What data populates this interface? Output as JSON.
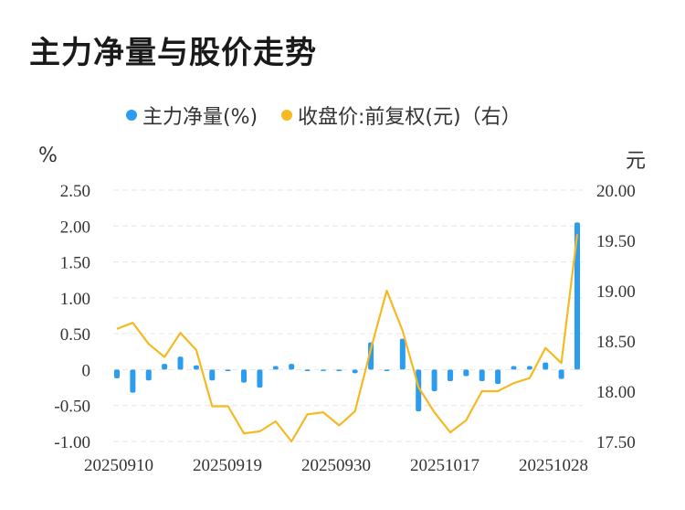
{
  "title": "主力净量与股价走势",
  "legend": {
    "main_label": "主力净量(%)",
    "price_label": "收盘价:前复权(元)（右）"
  },
  "units": {
    "left": "%",
    "right": "元"
  },
  "colors": {
    "bar": "#2b9cee",
    "line": "#f5b922",
    "grid": "#e6e6e6",
    "text": "#333333"
  },
  "chart_data": {
    "type": "bar+line",
    "x_tick_labels": [
      "20250910",
      "20250919",
      "20250930",
      "20251017",
      "20251028"
    ],
    "left_axis": {
      "ticks": [
        "2.50",
        "2.00",
        "1.50",
        "1.00",
        "0.50",
        "0",
        "-0.50",
        "-1.00"
      ],
      "ylim": [
        -1.0,
        2.5
      ]
    },
    "right_axis": {
      "ticks": [
        "20.00",
        "19.50",
        "19.00",
        "18.50",
        "18.00",
        "17.50"
      ],
      "ylim": [
        17.5,
        20.0
      ]
    },
    "series": [
      {
        "name": "主力净量(%)",
        "type": "bar",
        "axis": "left",
        "values": [
          -0.12,
          -0.32,
          -0.15,
          0.08,
          0.18,
          0.06,
          -0.15,
          -0.02,
          -0.18,
          -0.25,
          0.05,
          0.08,
          -0.02,
          -0.01,
          -0.02,
          -0.05,
          0.38,
          -0.02,
          0.43,
          -0.58,
          -0.3,
          -0.16,
          -0.09,
          -0.16,
          -0.2,
          0.05,
          0.05,
          0.1,
          -0.13,
          2.05
        ]
      },
      {
        "name": "收盘价:前复权(元)（右）",
        "type": "line",
        "axis": "right",
        "values": [
          18.62,
          18.68,
          18.47,
          18.34,
          18.58,
          18.41,
          17.85,
          17.85,
          17.58,
          17.6,
          17.7,
          17.5,
          17.77,
          17.79,
          17.66,
          17.8,
          18.42,
          19.0,
          18.6,
          18.04,
          17.79,
          17.59,
          17.71,
          18.0,
          18.0,
          18.08,
          18.13,
          18.43,
          18.28,
          19.56
        ]
      }
    ]
  }
}
